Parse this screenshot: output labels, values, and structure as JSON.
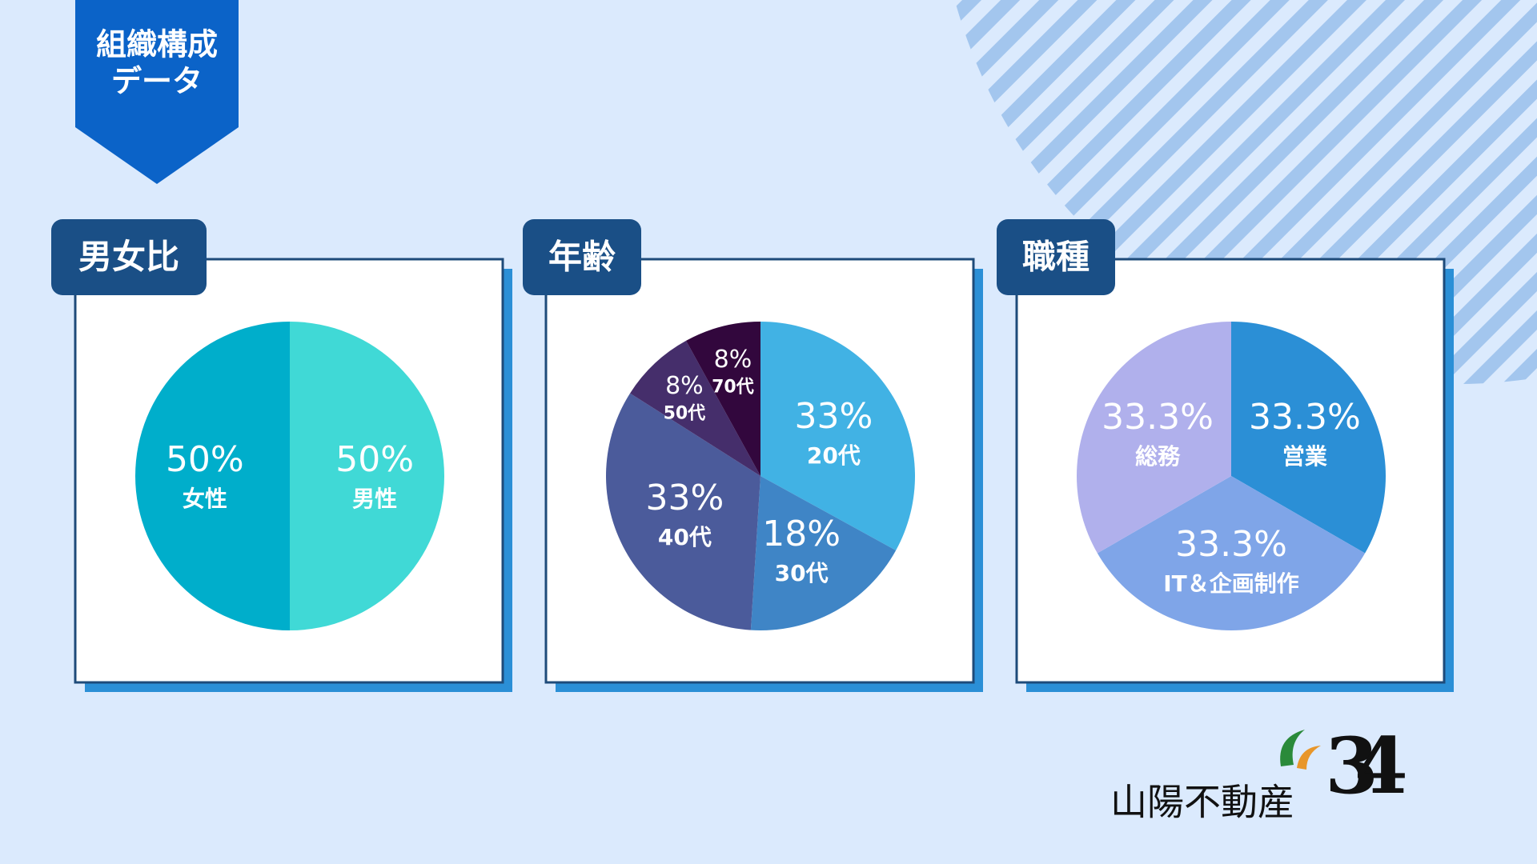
{
  "header": {
    "badge": [
      "組織構成",
      "データ"
    ]
  },
  "logo": {
    "name": "山陽不動産",
    "mark": "34"
  },
  "chart_data": [
    {
      "type": "pie",
      "title": "男女比",
      "categories": [
        "男性",
        "女性"
      ],
      "values": [
        50,
        50
      ],
      "value_labels": [
        "50%",
        "50%"
      ],
      "colors": [
        "#40d9d6",
        "#00aecb"
      ]
    },
    {
      "type": "pie",
      "title": "年齢",
      "categories": [
        "20代",
        "30代",
        "40代",
        "50代",
        "70代"
      ],
      "values": [
        33,
        18,
        33,
        8,
        8
      ],
      "value_labels": [
        "33%",
        "18%",
        "33%",
        "8%",
        "8%"
      ],
      "colors": [
        "#41b2e4",
        "#3f85c6",
        "#4b5b9b",
        "#452e6b",
        "#32073d"
      ]
    },
    {
      "type": "pie",
      "title": "職種",
      "categories": [
        "営業",
        "IT＆企画制作",
        "総務"
      ],
      "values": [
        33.3,
        33.3,
        33.3
      ],
      "value_labels": [
        "33.3%",
        "33.3%",
        "33.3%"
      ],
      "colors": [
        "#2b8fd6",
        "#7fa5e8",
        "#b0b0ec"
      ]
    }
  ]
}
